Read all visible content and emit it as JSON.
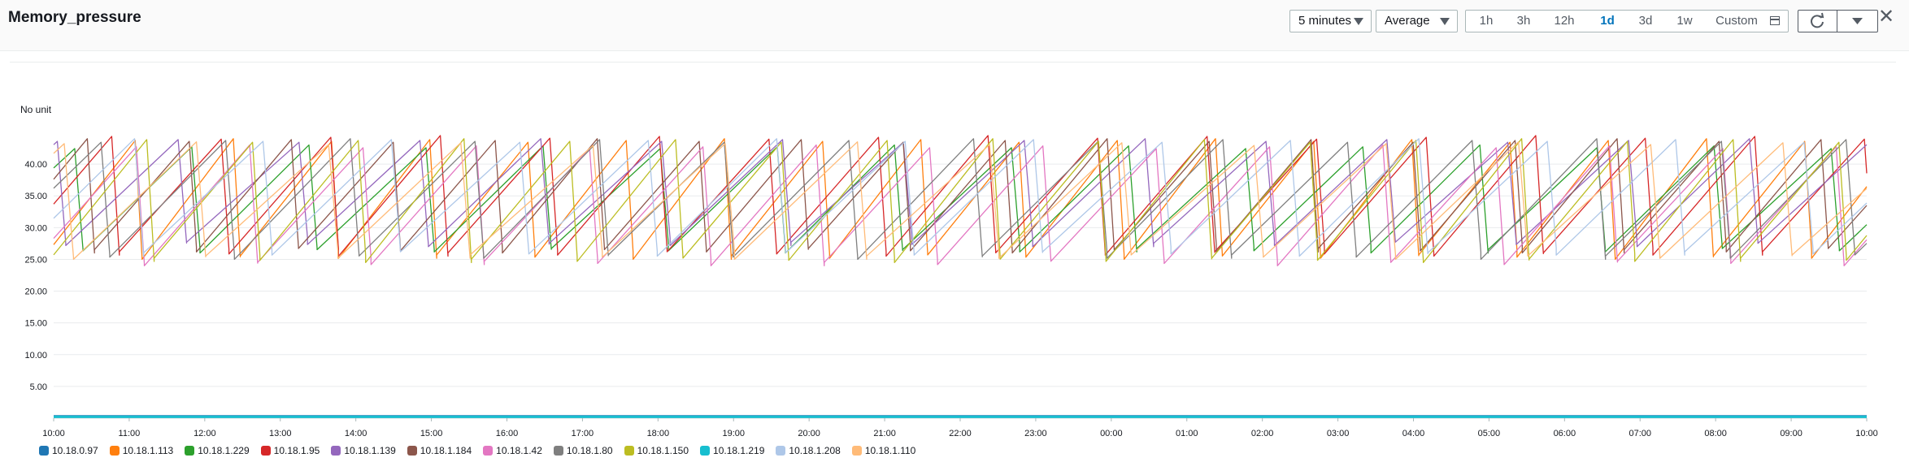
{
  "header": {
    "title": "Memory_pressure",
    "period": "5 minutes",
    "statistic": "Average",
    "ranges": [
      "1h",
      "3h",
      "12h",
      "1d",
      "3d",
      "1w"
    ],
    "active_range": "1d",
    "custom_label": "Custom"
  },
  "chart_data": {
    "type": "line",
    "ylabel": "No unit",
    "ylim": [
      0,
      45
    ],
    "yticks": [
      "5.00",
      "10.00",
      "15.00",
      "20.00",
      "25.00",
      "30.00",
      "35.00",
      "40.00"
    ],
    "xticks": [
      "10:00",
      "11:00",
      "12:00",
      "13:00",
      "14:00",
      "15:00",
      "16:00",
      "17:00",
      "18:00",
      "19:00",
      "20:00",
      "21:00",
      "22:00",
      "23:00",
      "00:00",
      "01:00",
      "02:00",
      "03:00",
      "04:00",
      "05:00",
      "06:00",
      "07:00",
      "08:00",
      "09:00",
      "10:00"
    ],
    "series": [
      {
        "name": "10.18.0.97",
        "color": "#1f77b4",
        "period": 0,
        "phase": 0,
        "min": 0.3,
        "max": 0.3
      },
      {
        "name": "10.18.1.113",
        "color": "#ff7f0e",
        "period": 1.3,
        "phase": 0.1,
        "min": 25,
        "max": 44
      },
      {
        "name": "10.18.1.229",
        "color": "#2ca02c",
        "period": 1.55,
        "phase": 0.75,
        "min": 26,
        "max": 43
      },
      {
        "name": "10.18.1.95",
        "color": "#d62728",
        "period": 1.45,
        "phase": 0.4,
        "min": 25.5,
        "max": 44.5
      },
      {
        "name": "10.18.1.139",
        "color": "#9467bd",
        "period": 1.6,
        "phase": 0.9,
        "min": 27,
        "max": 44
      },
      {
        "name": "10.18.1.184",
        "color": "#8c564b",
        "period": 1.35,
        "phase": 0.6,
        "min": 26,
        "max": 44
      },
      {
        "name": "10.18.1.42",
        "color": "#e377c2",
        "period": 1.5,
        "phase": 0.2,
        "min": 24,
        "max": 43
      },
      {
        "name": "10.18.1.80",
        "color": "#7f7f7f",
        "period": 1.65,
        "phase": 0.55,
        "min": 25,
        "max": 44
      },
      {
        "name": "10.18.1.150",
        "color": "#bcbd22",
        "period": 1.4,
        "phase": 0.05,
        "min": 24.5,
        "max": 44
      },
      {
        "name": "10.18.1.219",
        "color": "#17becf",
        "period": 0,
        "phase": 0,
        "min": 0.2,
        "max": 0.2
      },
      {
        "name": "10.18.1.208",
        "color": "#aec7e8",
        "period": 1.7,
        "phase": 0.3,
        "min": 25.5,
        "max": 44
      },
      {
        "name": "10.18.1.110",
        "color": "#ffbb78",
        "period": 1.75,
        "phase": 0.85,
        "min": 25,
        "max": 43.5
      }
    ]
  }
}
